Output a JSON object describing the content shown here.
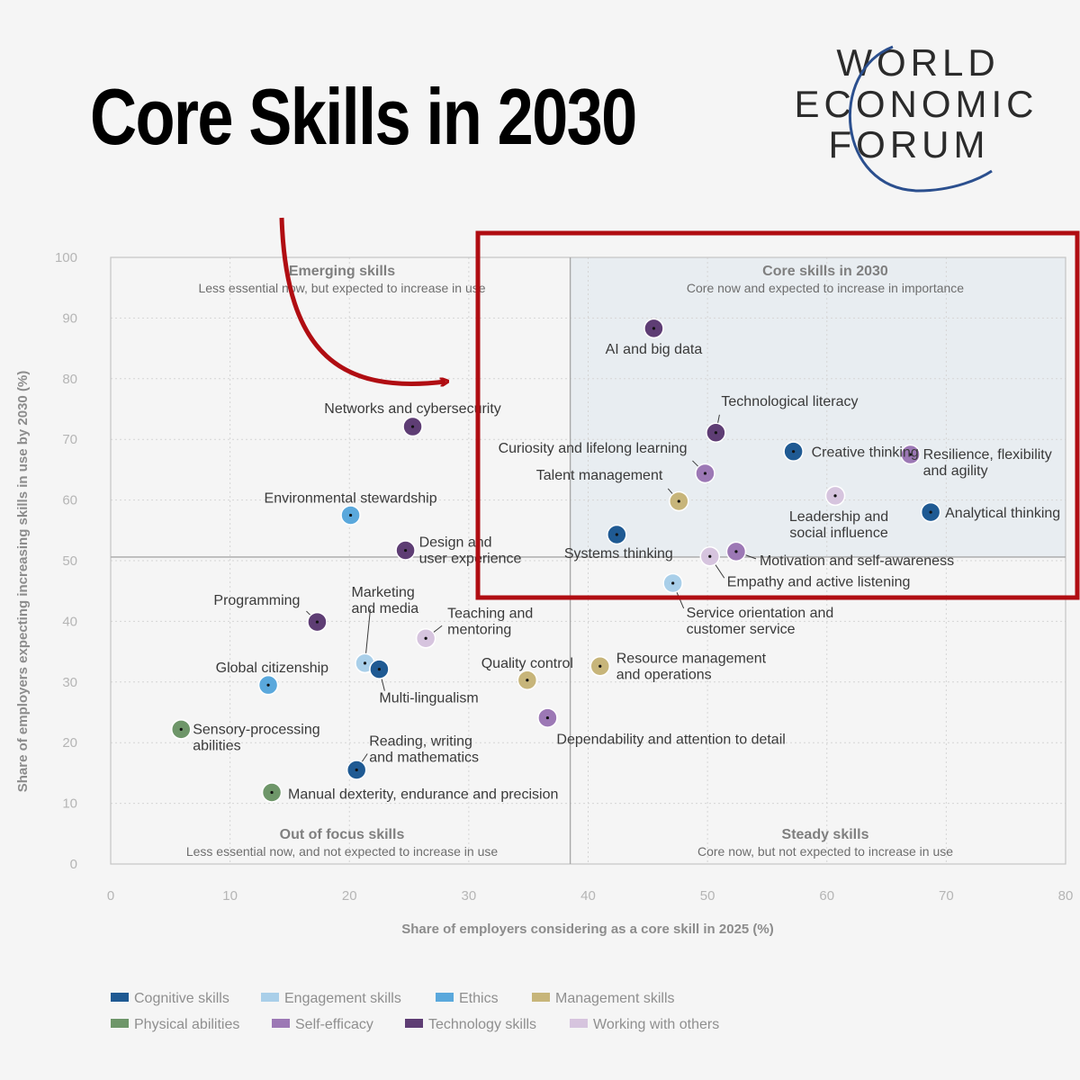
{
  "headline": "Core Skills in 2030",
  "logo": {
    "lines": [
      "WORLD",
      "ECONOMIC",
      "FORUM"
    ],
    "arc_color": "#2b4f8e"
  },
  "colors": {
    "Cognitive skills": "#1f5a93",
    "Engagement skills": "#a9cfe9",
    "Ethics": "#5aa8dc",
    "Management skills": "#c7b57a",
    "Physical abilities": "#6e9669",
    "Self-efficacy": "#9c78b5",
    "Technology skills": "#5e3d74",
    "Working with others": "#d6c4de"
  },
  "highlight_color": "#b00d12",
  "chart_data": {
    "type": "scatter",
    "xlabel": "Share of employers considering as a core skill in 2025 (%)",
    "ylabel": "Share of employers expecting increasing skills in use by 2030 (%)",
    "xlim": [
      0,
      80
    ],
    "ylim": [
      0,
      100
    ],
    "xticks": [
      "0",
      "10",
      "20",
      "30",
      "40",
      "50",
      "60",
      "70",
      "80"
    ],
    "yticks": [
      "0",
      "10",
      "20",
      "30",
      "40",
      "50",
      "60",
      "70",
      "80",
      "90",
      "100"
    ],
    "grid": true,
    "divider_x": 38.5,
    "divider_y": 50.6,
    "quadrants": {
      "top_left": {
        "title": "Emerging skills",
        "subtitle": "Less essential now, but expected to increase in use"
      },
      "top_right": {
        "title": "Core skills in 2030",
        "subtitle": "Core now and expected to increase in importance"
      },
      "bottom_left": {
        "title": "Out of focus skills",
        "subtitle": "Less essential now, and not expected to increase in use"
      },
      "bottom_right": {
        "title": "Steady skills",
        "subtitle": "Core now, but not expected to increase in use"
      }
    },
    "legend": [
      "Cognitive skills",
      "Engagement skills",
      "Ethics",
      "Management skills",
      "Physical abilities",
      "Self-efficacy",
      "Technology skills",
      "Working with others"
    ],
    "points": [
      {
        "label": [
          "AI and big data"
        ],
        "x": 45.5,
        "y": 88.3,
        "category": "Technology skills"
      },
      {
        "label": [
          "Technological literacy"
        ],
        "x": 50.7,
        "y": 71.1,
        "category": "Technology skills"
      },
      {
        "label": [
          "Creative thinking"
        ],
        "x": 57.2,
        "y": 68.0,
        "category": "Cognitive skills"
      },
      {
        "label": [
          "Resilience, flexibility",
          "and agility"
        ],
        "x": 67.0,
        "y": 67.5,
        "category": "Self-efficacy"
      },
      {
        "label": [
          "Curiosity and lifelong learning"
        ],
        "x": 49.8,
        "y": 64.4,
        "category": "Self-efficacy"
      },
      {
        "label": [
          "Leadership and",
          "social influence"
        ],
        "x": 60.7,
        "y": 60.7,
        "category": "Working with others"
      },
      {
        "label": [
          "Talent management"
        ],
        "x": 47.6,
        "y": 59.8,
        "category": "Management skills"
      },
      {
        "label": [
          "Analytical thinking"
        ],
        "x": 68.7,
        "y": 58.0,
        "category": "Cognitive skills"
      },
      {
        "label": [
          "Systems thinking"
        ],
        "x": 42.4,
        "y": 54.3,
        "category": "Cognitive skills"
      },
      {
        "label": [
          "Motivation and self-awareness"
        ],
        "x": 52.4,
        "y": 51.5,
        "category": "Self-efficacy"
      },
      {
        "label": [
          "Empathy and active listening"
        ],
        "x": 50.2,
        "y": 50.7,
        "category": "Working with others"
      },
      {
        "label": [
          "Service orientation and",
          "customer service"
        ],
        "x": 47.1,
        "y": 46.3,
        "category": "Engagement skills"
      },
      {
        "label": [
          "Networks and cybersecurity"
        ],
        "x": 25.3,
        "y": 72.1,
        "category": "Technology skills"
      },
      {
        "label": [
          "Environmental stewardship"
        ],
        "x": 20.1,
        "y": 57.5,
        "category": "Ethics"
      },
      {
        "label": [
          "Design and",
          "user experience"
        ],
        "x": 24.7,
        "y": 51.7,
        "category": "Technology skills"
      },
      {
        "label": [
          "Programming"
        ],
        "x": 17.3,
        "y": 39.9,
        "category": "Technology skills"
      },
      {
        "label": [
          "Marketing",
          "and media"
        ],
        "x": 21.3,
        "y": 33.1,
        "category": "Engagement skills"
      },
      {
        "label": [
          "Teaching and",
          "mentoring"
        ],
        "x": 26.4,
        "y": 37.2,
        "category": "Working with others"
      },
      {
        "label": [
          "Multi-lingualism"
        ],
        "x": 22.5,
        "y": 32.1,
        "category": "Cognitive skills"
      },
      {
        "label": [
          "Global citizenship"
        ],
        "x": 13.2,
        "y": 29.5,
        "category": "Ethics"
      },
      {
        "label": [
          "Quality control"
        ],
        "x": 34.9,
        "y": 30.3,
        "category": "Management skills"
      },
      {
        "label": [
          "Resource management",
          "and operations"
        ],
        "x": 41.0,
        "y": 32.6,
        "category": "Management skills"
      },
      {
        "label": [
          "Sensory-processing",
          "abilities"
        ],
        "x": 5.9,
        "y": 22.2,
        "category": "Physical abilities"
      },
      {
        "label": [
          "Dependability and attention to detail"
        ],
        "x": 36.6,
        "y": 24.1,
        "category": "Self-efficacy"
      },
      {
        "label": [
          "Reading, writing",
          "and mathematics"
        ],
        "x": 20.6,
        "y": 15.5,
        "category": "Cognitive skills"
      },
      {
        "label": [
          "Manual dexterity, endurance and precision"
        ],
        "x": 13.5,
        "y": 11.8,
        "category": "Physical abilities"
      }
    ]
  }
}
